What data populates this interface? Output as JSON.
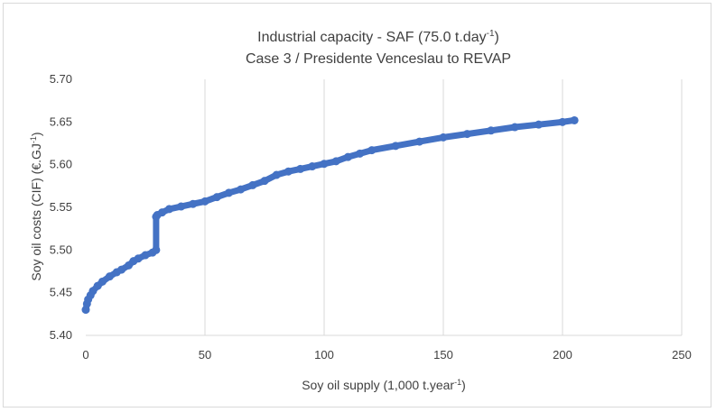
{
  "chart_data": {
    "type": "scatter",
    "title_line1": "Industrial capacity - SAF (75.0 t.day",
    "title_line1_sup": "-1",
    "title_line1_end": ")",
    "title_line2": "Case 3 / Presidente  Venceslau  to  REVAP",
    "xlabel": "Soy oil supply (1,000 t.year",
    "xlabel_sup": "-1",
    "xlabel_end": ")",
    "ylabel": "Soy oil costs (CIF) (€.GJ",
    "ylabel_sup": "-1",
    "ylabel_end": ")",
    "xlim": [
      0,
      250
    ],
    "ylim": [
      5.4,
      5.7
    ],
    "x_ticks": [
      0,
      50,
      100,
      150,
      200,
      250
    ],
    "x_tick_labels": [
      "0",
      "50",
      "100",
      "150",
      "200",
      "250"
    ],
    "y_ticks": [
      5.4,
      5.45,
      5.5,
      5.55,
      5.6,
      5.65,
      5.7
    ],
    "y_tick_labels": [
      "5.40",
      "5.45",
      "5.50",
      "5.55",
      "5.60",
      "5.65",
      "5.70"
    ],
    "grid": "vertical",
    "marker_color": "#4472c4",
    "series": [
      {
        "x": [
          0,
          0.5,
          1,
          2,
          3,
          5,
          7,
          10,
          13,
          15,
          18,
          20,
          22,
          25,
          28,
          29.5,
          29.5,
          30,
          32,
          35,
          40,
          45,
          50,
          55,
          60,
          65,
          70,
          75,
          80,
          85,
          90,
          95,
          100,
          105,
          110,
          115,
          120,
          130,
          140,
          150,
          160,
          170,
          180,
          190,
          200,
          205
        ],
        "y": [
          5.43,
          5.437,
          5.442,
          5.447,
          5.452,
          5.458,
          5.463,
          5.469,
          5.474,
          5.477,
          5.482,
          5.487,
          5.49,
          5.494,
          5.497,
          5.5,
          5.539,
          5.541,
          5.544,
          5.548,
          5.551,
          5.554,
          5.557,
          5.562,
          5.567,
          5.571,
          5.576,
          5.581,
          5.588,
          5.592,
          5.595,
          5.598,
          5.601,
          5.604,
          5.609,
          5.613,
          5.617,
          5.622,
          5.627,
          5.632,
          5.636,
          5.64,
          5.644,
          5.647,
          5.65,
          5.652
        ]
      }
    ]
  }
}
